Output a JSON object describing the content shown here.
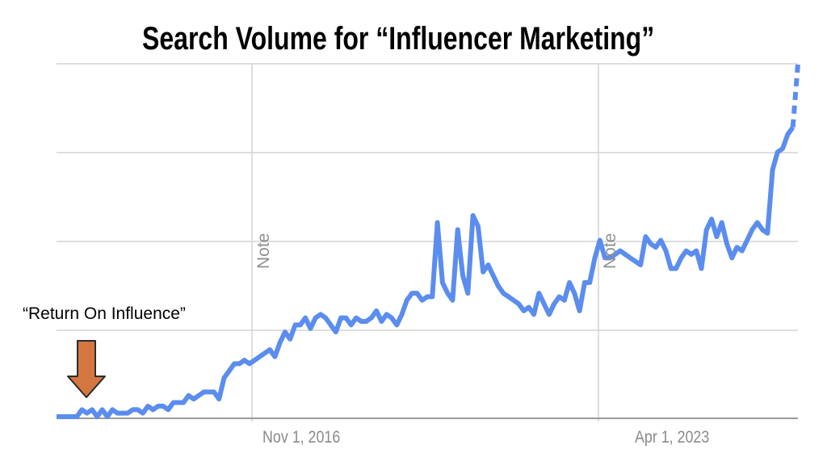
{
  "chart_data": {
    "type": "line",
    "title": "Search Volume for “Influencer Marketing”",
    "xlabel": "",
    "ylabel": "",
    "x_tick_labels": [
      "Nov 1, 2016",
      "Apr 1, 2023"
    ],
    "y_tick_labels": [],
    "ylim": [
      0,
      100
    ],
    "grid": true,
    "legend": null,
    "series": [
      {
        "name": "Influencer Marketing",
        "color": "#5b8def",
        "values": [
          0,
          0,
          0,
          0,
          0,
          2,
          1,
          2,
          0,
          2,
          0,
          2,
          1,
          1,
          1,
          2,
          2,
          1,
          3,
          2,
          3,
          3,
          2,
          4,
          4,
          4,
          6,
          5,
          6,
          7,
          7,
          7,
          5,
          11,
          13,
          15,
          15,
          16,
          15,
          16,
          17,
          18,
          19,
          17,
          21,
          24,
          22,
          26,
          26,
          28,
          25,
          28,
          29,
          28,
          26,
          24,
          28,
          28,
          26,
          28,
          27,
          27,
          28,
          30,
          27,
          29,
          28,
          26,
          29,
          33,
          35,
          35,
          33,
          34,
          34,
          55,
          38,
          35,
          33,
          53,
          40,
          35,
          57,
          54,
          41,
          43,
          40,
          37,
          35,
          34,
          33,
          32,
          30,
          31,
          29,
          35,
          32,
          29,
          32,
          34,
          33,
          38,
          35,
          30,
          38,
          38,
          45,
          50,
          45,
          45,
          46,
          47,
          46,
          45,
          44,
          43,
          51,
          49,
          48,
          50,
          47,
          42,
          42,
          45,
          47,
          46,
          47,
          42,
          53,
          56,
          51,
          55,
          49,
          45,
          48,
          47,
          50,
          53,
          55,
          53,
          52,
          70,
          75,
          76,
          80,
          82,
          100
        ],
        "projected_tail": true
      }
    ],
    "annotations": [
      {
        "text": "“Return On Influence”",
        "type": "arrow-down",
        "arrow_color": "#d4763f"
      },
      {
        "text": "Note",
        "at": "Nov 1, 2016"
      },
      {
        "text": "Note",
        "at": "Apr 1, 2023"
      }
    ]
  },
  "title": "Search Volume for “Influencer Marketing”",
  "annotation_label": "“Return On Influence”",
  "x_ticks": [
    "Nov 1, 2016",
    "Apr 1, 2023"
  ],
  "notes": [
    "Note",
    "Note"
  ],
  "colors": {
    "line": "#5b8def",
    "arrow": "#d4763f",
    "grid": "#dcdcdc",
    "axis": "#9a9a9a"
  }
}
